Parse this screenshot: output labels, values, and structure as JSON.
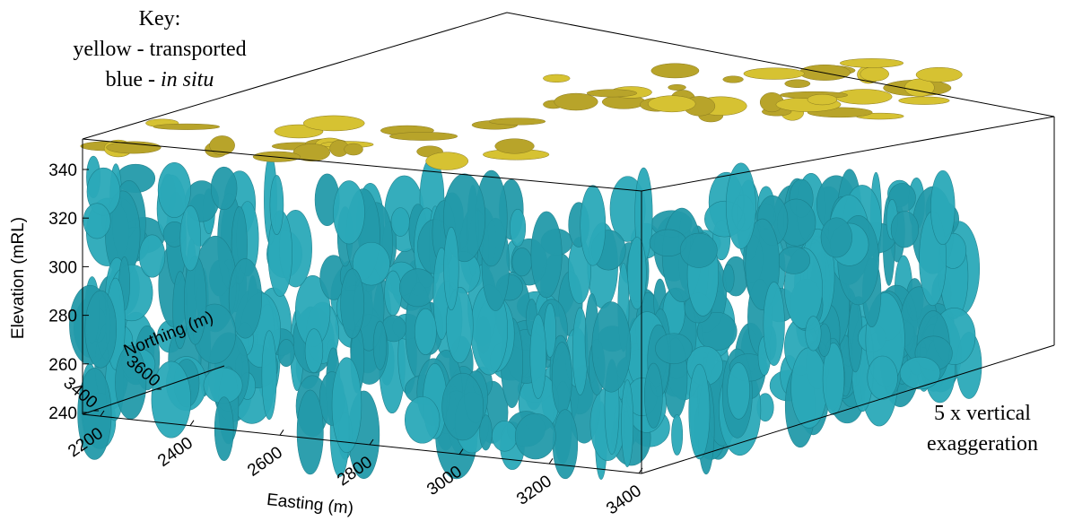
{
  "key": {
    "title": "Key:",
    "yellow": "yellow - transported",
    "blue": "blue - ",
    "blue_italic": "in situ"
  },
  "note": {
    "line1": "5 x vertical",
    "line2": "exaggeration"
  },
  "axes": {
    "elevation": {
      "label": "Elevation (mRL)",
      "ticks": [
        240,
        260,
        280,
        300,
        320,
        340
      ]
    },
    "northing": {
      "label": "Northing (m)",
      "ticks": [
        3400,
        3600
      ]
    },
    "easting": {
      "label": "Easting (m)",
      "ticks": [
        2200,
        2400,
        2600,
        2800,
        3000,
        3200,
        3400
      ]
    }
  }
}
